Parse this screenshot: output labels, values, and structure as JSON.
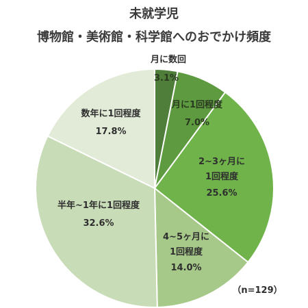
{
  "chart_data": {
    "type": "pie",
    "title": [
      "未就学児",
      "博物館・美術館・科学館へのおでかけ頻度"
    ],
    "slices": [
      {
        "label": [
          "月に数回"
        ],
        "value": 3.1,
        "display": "3.1%",
        "color": "#4f7d3a"
      },
      {
        "label": [
          "月に1回程度"
        ],
        "value": 7.0,
        "display": "7.0%",
        "color": "#5e9a3f"
      },
      {
        "label": [
          "2~3ヶ月に",
          "1回程度"
        ],
        "value": 25.6,
        "display": "25.6%",
        "color": "#6fb34a"
      },
      {
        "label": [
          "4~5ヶ月に",
          "1回程度"
        ],
        "value": 14.0,
        "display": "14.0%",
        "color": "#a6c98a"
      },
      {
        "label": [
          "半年~1年に1回程度"
        ],
        "value": 32.6,
        "display": "32.6%",
        "color": "#c9dcb8"
      },
      {
        "label": [
          "数年に1回程度"
        ],
        "value": 17.8,
        "display": "17.8%",
        "color": "#e1ebd7"
      }
    ],
    "note": "（n=129）",
    "start_angle_deg": 0,
    "direction": "clockwise",
    "legend": "none"
  }
}
